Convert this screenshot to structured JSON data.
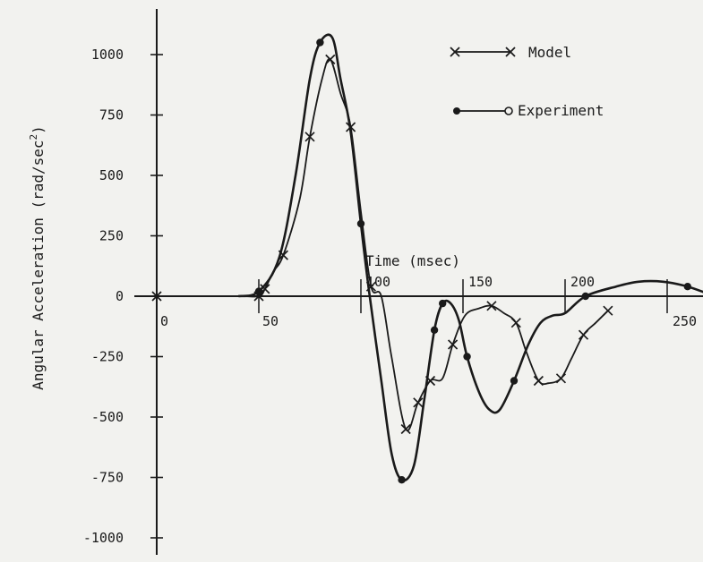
{
  "chart_data": {
    "type": "line",
    "title": "",
    "xlabel": "Time (msec)",
    "ylabel": "Angular Acceleration (rad/sec",
    "ylabel_superscript": "2",
    "ylabel_close": ")",
    "xlim": [
      0,
      270
    ],
    "ylim": [
      -1100,
      1200
    ],
    "grid": false,
    "legend_position": "top-right",
    "x_ticks": [
      {
        "value": 0,
        "label": "0"
      },
      {
        "value": 50,
        "label": "50"
      },
      {
        "value": 100,
        "label": "100"
      },
      {
        "value": 150,
        "label": "150"
      },
      {
        "value": 200,
        "label": "200"
      },
      {
        "value": 250,
        "label": "250"
      }
    ],
    "y_ticks": [
      {
        "value": 1000,
        "label": "1000"
      },
      {
        "value": 750,
        "label": "750"
      },
      {
        "value": 500,
        "label": "500"
      },
      {
        "value": 250,
        "label": "250"
      },
      {
        "value": 0,
        "label": "0"
      },
      {
        "value": -250,
        "label": "-250"
      },
      {
        "value": -500,
        "label": "-500"
      },
      {
        "value": -750,
        "label": "-750"
      },
      {
        "value": -1000,
        "label": "-1000"
      }
    ],
    "series": [
      {
        "name": "Model",
        "marker": "x",
        "color": "#1a1a1a",
        "points": [
          [
            0,
            0
          ],
          [
            40,
            0
          ],
          [
            50,
            0
          ],
          [
            53,
            30
          ],
          [
            57,
            100
          ],
          [
            62,
            170
          ],
          [
            70,
            400
          ],
          [
            75,
            660
          ],
          [
            81,
            900
          ],
          [
            85,
            980
          ],
          [
            90,
            840
          ],
          [
            95,
            700
          ],
          [
            100,
            350
          ],
          [
            105,
            40
          ],
          [
            110,
            0
          ],
          [
            115,
            -250
          ],
          [
            122,
            -550
          ],
          [
            128,
            -440
          ],
          [
            134,
            -350
          ],
          [
            140,
            -340
          ],
          [
            145,
            -200
          ],
          [
            151,
            -80
          ],
          [
            158,
            -50
          ],
          [
            164,
            -40
          ],
          [
            170,
            -70
          ],
          [
            176,
            -110
          ],
          [
            181,
            -230
          ],
          [
            187,
            -350
          ],
          [
            192,
            -360
          ],
          [
            198,
            -340
          ],
          [
            203,
            -260
          ],
          [
            209,
            -160
          ],
          [
            215,
            -110
          ],
          [
            221,
            -60
          ]
        ]
      },
      {
        "name": "Experiment",
        "marker": "circle",
        "color": "#1a1a1a",
        "points": [
          [
            40,
            0
          ],
          [
            50,
            20
          ],
          [
            60,
            160
          ],
          [
            68,
            500
          ],
          [
            75,
            900
          ],
          [
            80,
            1050
          ],
          [
            86,
            1070
          ],
          [
            90,
            900
          ],
          [
            95,
            680
          ],
          [
            100,
            300
          ],
          [
            104,
            20
          ],
          [
            110,
            -350
          ],
          [
            115,
            -650
          ],
          [
            120,
            -760
          ],
          [
            126,
            -700
          ],
          [
            131,
            -430
          ],
          [
            136,
            -140
          ],
          [
            140,
            -30
          ],
          [
            144,
            -30
          ],
          [
            148,
            -100
          ],
          [
            152,
            -250
          ],
          [
            158,
            -400
          ],
          [
            163,
            -470
          ],
          [
            168,
            -470
          ],
          [
            175,
            -350
          ],
          [
            182,
            -200
          ],
          [
            188,
            -110
          ],
          [
            194,
            -80
          ],
          [
            200,
            -70
          ],
          [
            210,
            0
          ],
          [
            225,
            40
          ],
          [
            236,
            60
          ],
          [
            248,
            60
          ],
          [
            260,
            40
          ],
          [
            270,
            10
          ]
        ]
      }
    ]
  },
  "legend": {
    "model_label": "Model",
    "experiment_label": "Experiment"
  },
  "axis_title": {
    "x": "Time (msec)"
  }
}
